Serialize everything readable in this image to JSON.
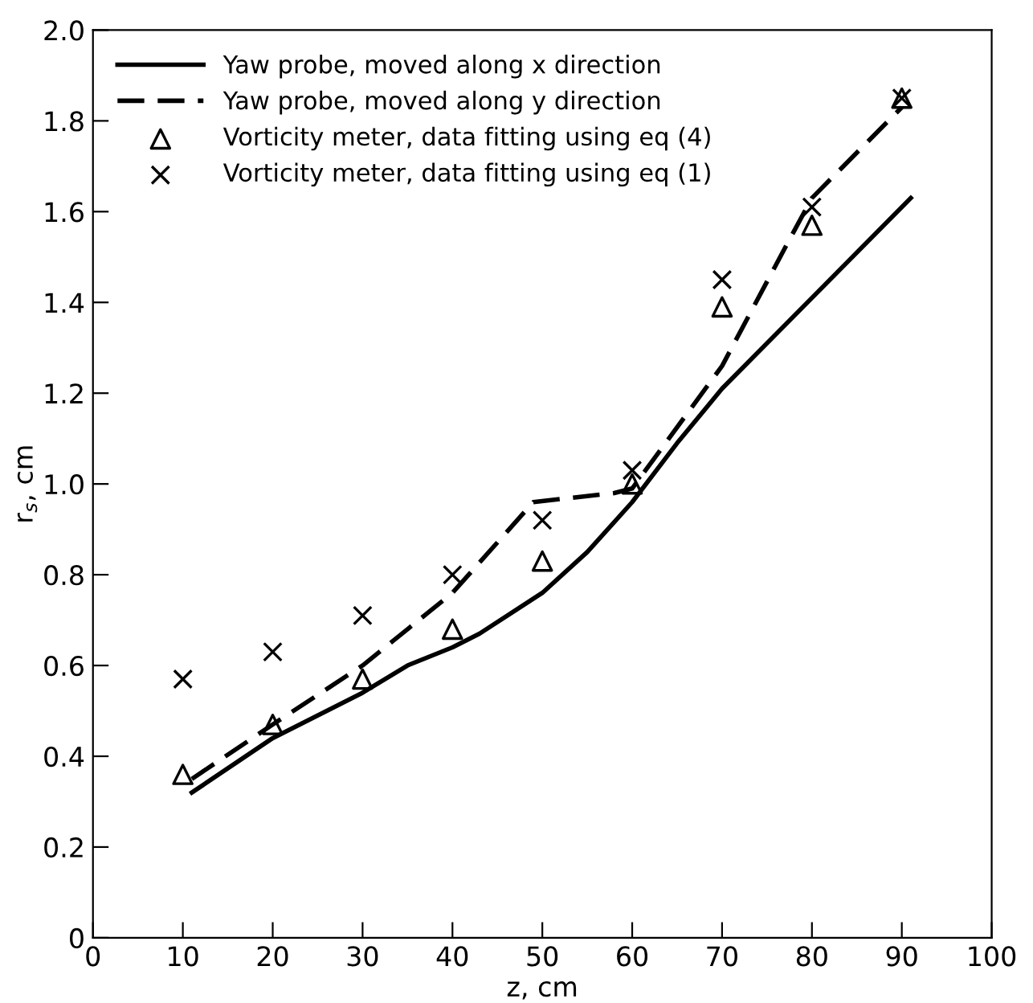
{
  "chart_data": {
    "type": "line",
    "xlabel": "z, cm",
    "ylabel": "r$_{s}$, cm",
    "xlim": [
      0,
      100
    ],
    "xticks": [
      0,
      10,
      20,
      30,
      40,
      50,
      60,
      70,
      80,
      90,
      100
    ],
    "ylim": [
      0,
      2.0
    ],
    "yticks": [
      {
        "value": 0,
        "label": "0"
      },
      0.2,
      0.4,
      0.6,
      0.8,
      {
        "value": 1.0,
        "label": "1.0"
      },
      1.2,
      1.4,
      1.6,
      1.8,
      {
        "value": 2.0,
        "label": "2.0"
      }
    ],
    "grid": false,
    "legend": "top left",
    "series": [
      {
        "name": "Yaw probe, moved along x direction",
        "line_style": "solid",
        "marker": "none",
        "color": "#000000",
        "x": [
          11,
          20,
          30,
          35,
          40,
          43,
          50,
          55,
          60,
          65,
          70,
          80,
          91
        ],
        "values": [
          0.32,
          0.44,
          0.54,
          0.6,
          0.64,
          0.67,
          0.76,
          0.85,
          0.96,
          1.09,
          1.21,
          1.41,
          1.63
        ]
      },
      {
        "name": "Yaw probe, moved along y direction",
        "line_style": "dashed",
        "marker": "none",
        "color": "#000000",
        "x": [
          11,
          20,
          30,
          40,
          49,
          58,
          60,
          70,
          77,
          80,
          90
        ],
        "values": [
          0.35,
          0.47,
          0.6,
          0.76,
          0.96,
          0.98,
          0.99,
          1.26,
          1.52,
          1.63,
          1.83
        ]
      },
      {
        "name": "Vorticity meter, data fitting using eq (4)",
        "type": "scatter",
        "marker": "triangle",
        "color": "#000000",
        "x": [
          10,
          20,
          30,
          40,
          50,
          60,
          70,
          80,
          90
        ],
        "values": [
          0.36,
          0.47,
          0.57,
          0.68,
          0.83,
          1.0,
          1.39,
          1.57,
          1.85
        ]
      },
      {
        "name": "Vorticity meter, data fitting using eq (1)",
        "type": "scatter",
        "marker": "cross",
        "color": "#000000",
        "x": [
          10,
          20,
          30,
          40,
          50,
          60,
          70,
          80,
          90
        ],
        "values": [
          0.57,
          0.63,
          0.71,
          0.8,
          0.92,
          1.03,
          1.45,
          1.61,
          1.85
        ]
      }
    ]
  }
}
